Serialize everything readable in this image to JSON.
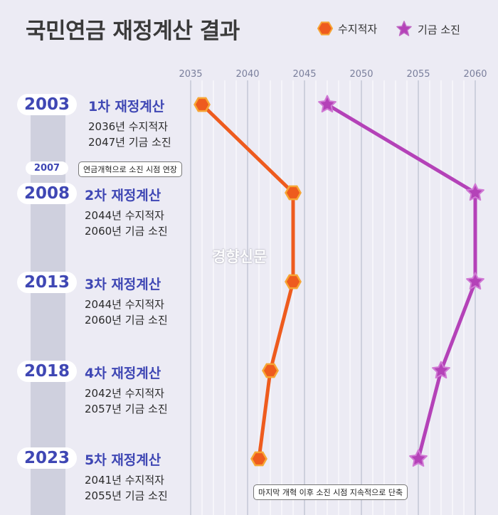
{
  "title": "국민연금 재정계산 결과",
  "legend": [
    {
      "label": "수지적자",
      "color": "#ee5b1e",
      "marker": "hexagon"
    },
    {
      "label": "기금 소진",
      "color": "#b442b8",
      "marker": "star"
    }
  ],
  "rounds": [
    {
      "year": "2003",
      "title": "1차 재정계산",
      "deficit_text": "2036년 수지적자",
      "depletion_text": "2047년 기금 소진"
    },
    {
      "year": "2008",
      "title": "2차 재정계산",
      "deficit_text": "2044년 수지적자",
      "depletion_text": "2060년 기금 소진"
    },
    {
      "year": "2013",
      "title": "3차 재정계산",
      "deficit_text": "2044년 수지적자",
      "depletion_text": "2060년 기금 소진"
    },
    {
      "year": "2018",
      "title": "4차 재정계산",
      "deficit_text": "2042년 수지적자",
      "depletion_text": "2057년 기금 소진"
    },
    {
      "year": "2023",
      "title": "5차 재정계산",
      "deficit_text": "2041년 수지적자",
      "depletion_text": "2055년 기금 소진"
    }
  ],
  "note_2007": {
    "year": "2007",
    "text": "연금개혁으로 소진 시점 연장"
  },
  "callout_bottom": "마지막 개혁 이후 소진 시점 지속적으로 단축",
  "watermark": "경향신문",
  "chart_data": {
    "type": "line",
    "x_ticks": [
      2035,
      2040,
      2045,
      2050,
      2055,
      2060
    ],
    "xlim": [
      2035,
      2060
    ],
    "categories": [
      "2003",
      "2008",
      "2013",
      "2018",
      "2023"
    ],
    "series": [
      {
        "name": "수지적자",
        "values": [
          2036,
          2044,
          2044,
          2042,
          2041
        ]
      },
      {
        "name": "기금 소진",
        "values": [
          2047,
          2060,
          2060,
          2057,
          2055
        ]
      }
    ],
    "grid": true,
    "legend_position": "top-right"
  }
}
